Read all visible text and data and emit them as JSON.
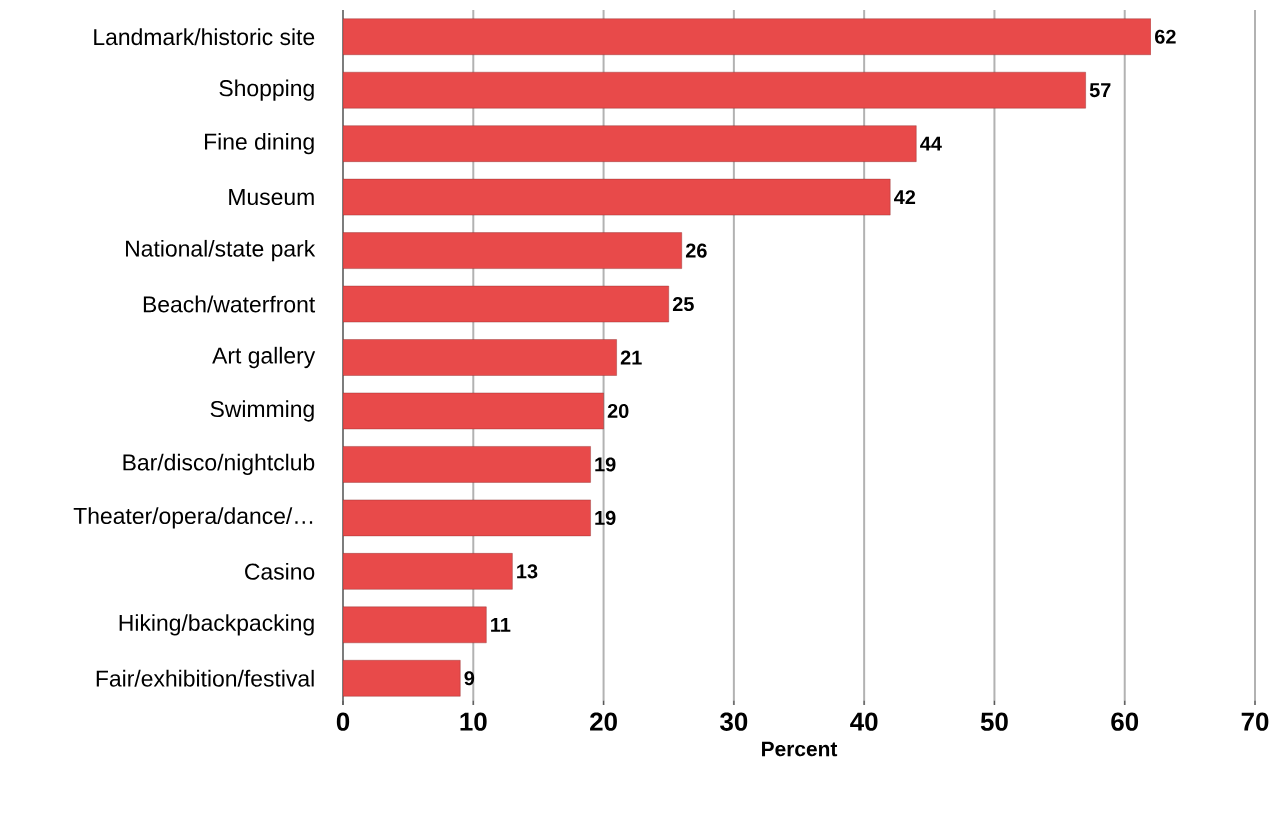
{
  "chart_data": {
    "type": "bar",
    "orientation": "horizontal",
    "xlabel": "Percent",
    "categories": [
      "Landmark/historic site",
      "Shopping",
      "Fine dining",
      "Museum",
      "National/state park",
      "Beach/waterfront",
      "Art gallery",
      "Swimming",
      "Bar/disco/nightclub",
      "Theater/opera/dance/…",
      "Casino",
      "Hiking/backpacking",
      "Fair/exhibition/festival"
    ],
    "values": [
      62,
      57,
      44,
      42,
      26,
      25,
      21,
      20,
      19,
      19,
      13,
      11,
      9
    ],
    "color": "#e84a4a",
    "xlim": [
      0,
      70
    ],
    "xticks": [
      0,
      10,
      20,
      30,
      40,
      50,
      60,
      70
    ],
    "grid": "x",
    "data_labels": true
  }
}
